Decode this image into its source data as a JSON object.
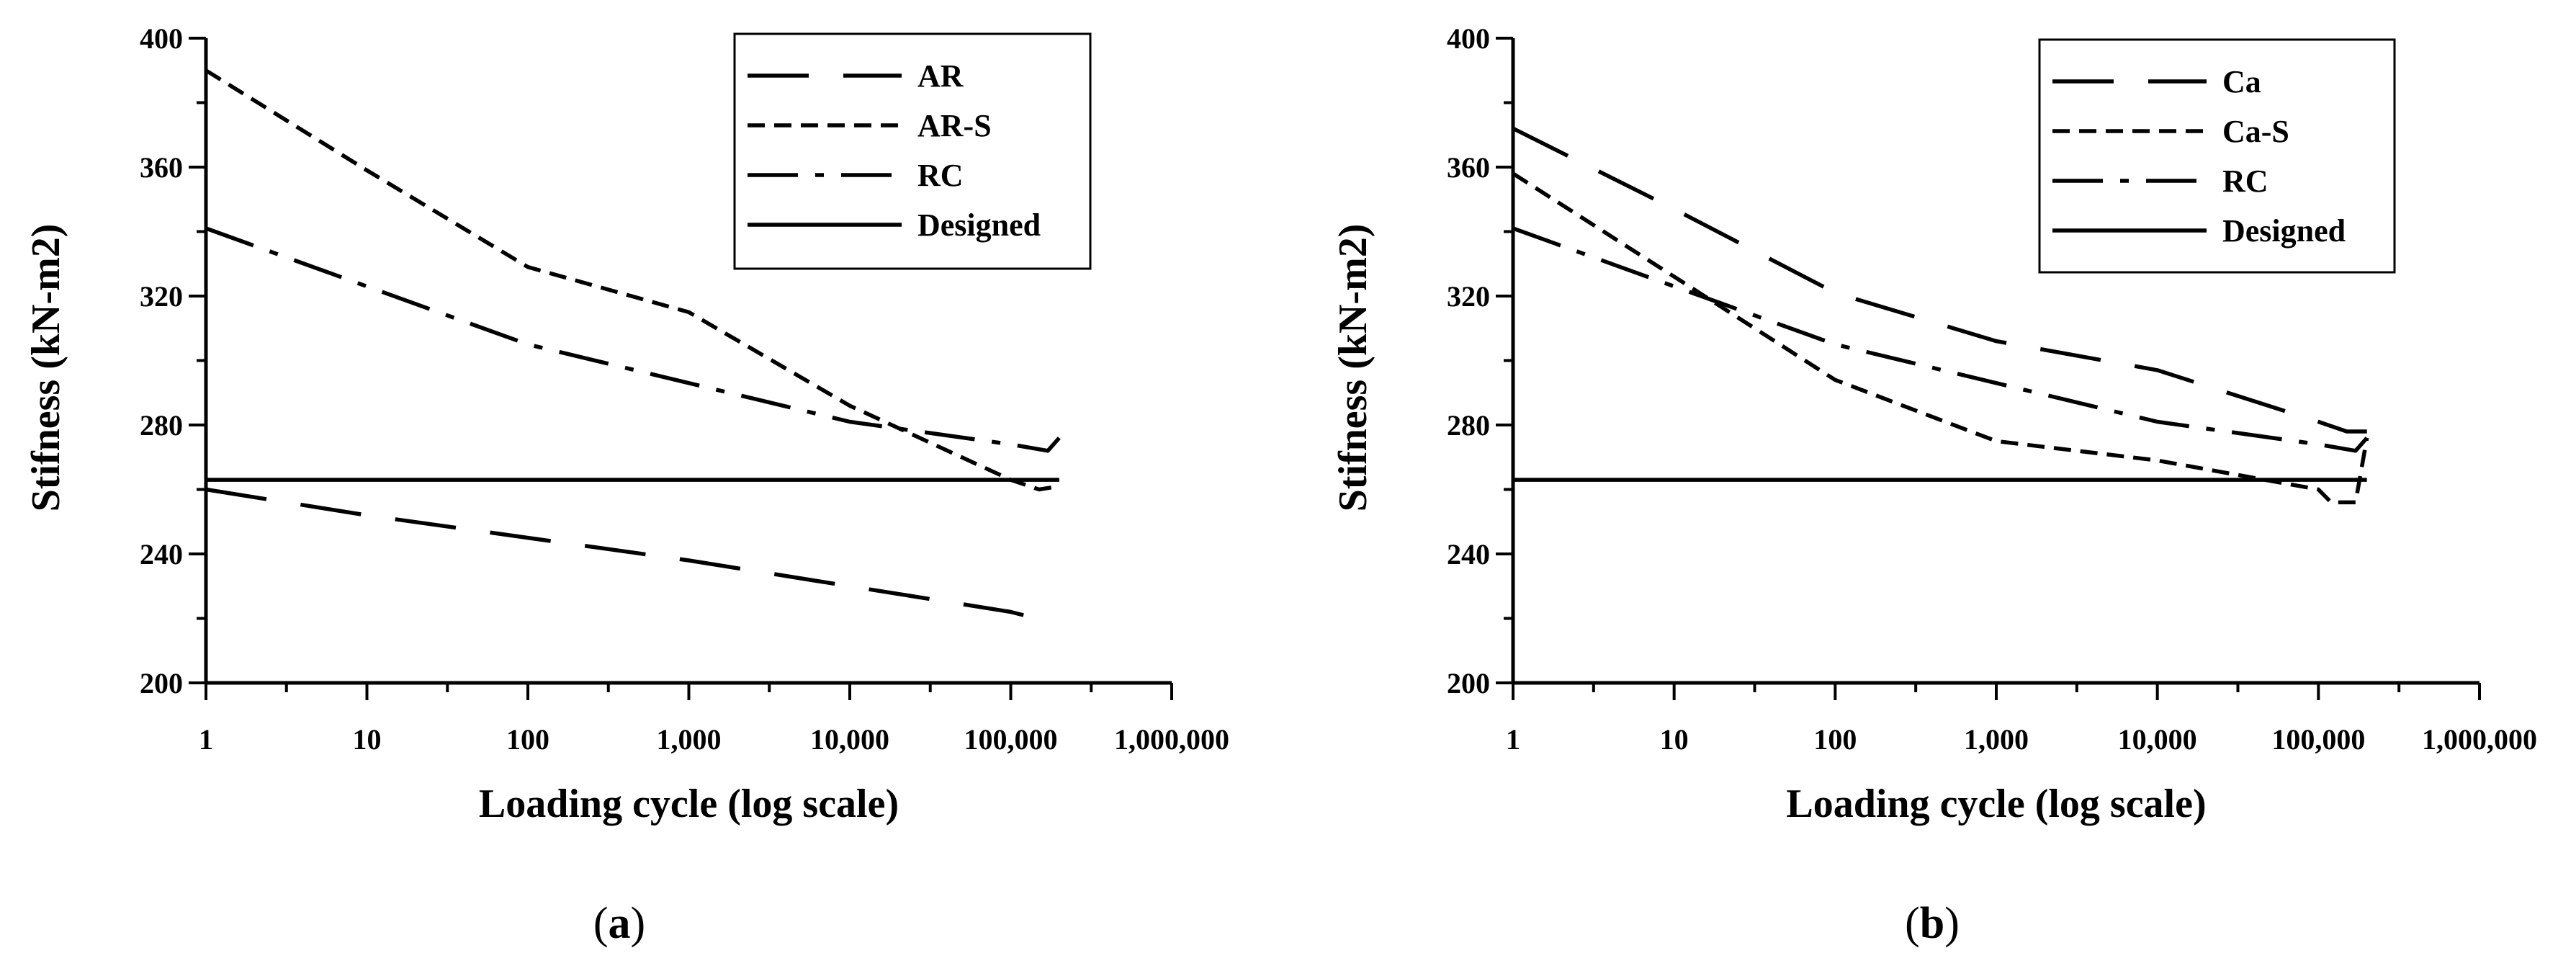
{
  "colors": {
    "line": "#000000",
    "background": "#ffffff"
  },
  "panels": [
    {
      "panel_label_open": "(",
      "panel_label_letter": "a",
      "panel_label_close": ")",
      "chart_data": {
        "type": "line",
        "xlabel": "Loading cycle (log scale)",
        "ylabel": "Stifness (kN-m2)",
        "x_scale": "log",
        "xlim": [
          1,
          1000000
        ],
        "ylim": [
          200,
          400
        ],
        "x_ticks": [
          1,
          10,
          100,
          1000,
          10000,
          100000,
          1000000
        ],
        "x_tick_labels": [
          "1",
          "10",
          "100",
          "1,000",
          "10,000",
          "100,000",
          "1,000,000"
        ],
        "y_ticks": [
          200,
          240,
          280,
          320,
          360,
          400
        ],
        "y_tick_labels": [
          "200",
          "240",
          "280",
          "320",
          "360",
          "400"
        ],
        "legend_placement": "top-right",
        "series": [
          {
            "name": "AR",
            "style": "long-dash",
            "x": [
              1,
              10,
              100,
              1000,
              10000,
              100000,
              120000
            ],
            "y": [
              260,
              252,
              245,
              238,
              230,
              222,
              221
            ]
          },
          {
            "name": "AR-S",
            "style": "short-dash",
            "x": [
              1,
              10,
              100,
              1000,
              10000,
              100000,
              150000,
              200000
            ],
            "y": [
              390,
              359,
              329,
              315,
              286,
              263,
              260,
              261
            ]
          },
          {
            "name": "RC",
            "style": "dash-dot",
            "x": [
              1,
              10,
              100,
              1000,
              10000,
              100000,
              170000,
              200000
            ],
            "y": [
              341,
              323,
              305,
              293,
              281,
              274,
              272,
              276
            ]
          },
          {
            "name": "Designed",
            "style": "solid",
            "x": [
              1,
              200000
            ],
            "y": [
              263,
              263
            ]
          }
        ]
      }
    },
    {
      "panel_label_open": "(",
      "panel_label_letter": "b",
      "panel_label_close": ")",
      "chart_data": {
        "type": "line",
        "xlabel": "Loading cycle (log scale)",
        "ylabel": "Stifness (kN-m2)",
        "x_scale": "log",
        "xlim": [
          1,
          1000000
        ],
        "ylim": [
          200,
          400
        ],
        "x_ticks": [
          1,
          10,
          100,
          1000,
          10000,
          100000,
          1000000
        ],
        "x_tick_labels": [
          "1",
          "10",
          "100",
          "1,000",
          "10,000",
          "100,000",
          "1,000,000"
        ],
        "y_ticks": [
          200,
          240,
          280,
          320,
          360,
          400
        ],
        "y_tick_labels": [
          "200",
          "240",
          "280",
          "320",
          "360",
          "400"
        ],
        "legend_placement": "top-right",
        "series": [
          {
            "name": "Ca",
            "style": "long-dash",
            "x": [
              1,
              10,
              100,
              1000,
              10000,
              100000,
              150000,
              200000
            ],
            "y": [
              372,
              347,
              321,
              306,
              297,
              281,
              278,
              278
            ]
          },
          {
            "name": "Ca-S",
            "style": "short-dash",
            "x": [
              1,
              10,
              100,
              1000,
              10000,
              100000,
              120000,
              170000,
              200000
            ],
            "y": [
              358,
              326,
              294,
              275,
              269,
              260,
              256,
              256,
              276
            ]
          },
          {
            "name": "RC",
            "style": "dash-dot",
            "x": [
              1,
              10,
              100,
              1000,
              10000,
              100000,
              170000,
              200000
            ],
            "y": [
              341,
              323,
              305,
              293,
              281,
              274,
              272,
              276
            ]
          },
          {
            "name": "Designed",
            "style": "solid",
            "x": [
              1,
              200000
            ],
            "y": [
              263,
              263
            ]
          }
        ]
      }
    }
  ]
}
